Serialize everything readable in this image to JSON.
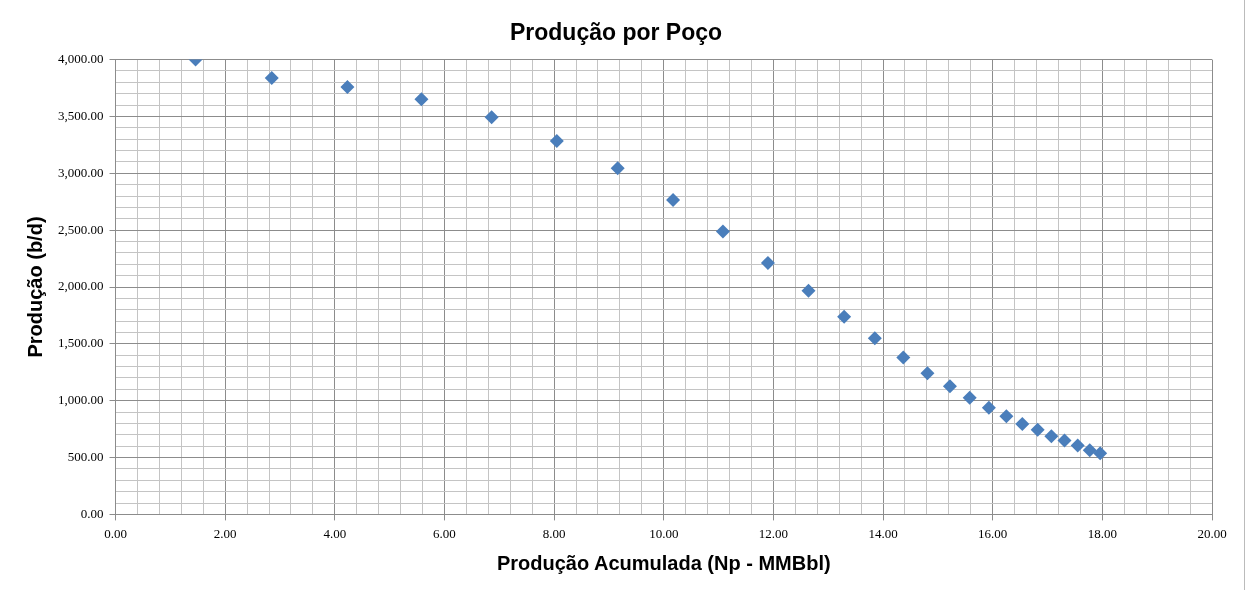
{
  "chart_data": {
    "type": "scatter",
    "title": "Produção por Poço",
    "xlabel": "Produção Acumulada (Np - MMBbl)",
    "ylabel": "Produção (b/d)",
    "x": [
      1.46,
      2.85,
      4.23,
      5.58,
      6.86,
      8.05,
      9.16,
      10.17,
      11.08,
      11.9,
      12.64,
      13.29,
      13.85,
      14.37,
      14.81,
      15.22,
      15.58,
      15.93,
      16.25,
      16.54,
      16.82,
      17.07,
      17.31,
      17.55,
      17.77,
      17.96
    ],
    "series": [
      {
        "color": "#4a7ebb",
        "values": [
          4000,
          3838,
          3760,
          3652,
          3493,
          3284,
          3044,
          2766,
          2489,
          2212,
          1968,
          1739,
          1549,
          1380,
          1241,
          1126,
          1025,
          937,
          863,
          795,
          744,
          687,
          650,
          605,
          564,
          538
        ]
      }
    ],
    "marker": "diamond",
    "grid": true,
    "legend": false,
    "xlim": [
      0,
      20
    ],
    "ylim": [
      0,
      4000
    ],
    "xticks": [
      {
        "value": 0,
        "label": "0.00"
      },
      {
        "value": 0.4,
        "label": null
      },
      {
        "value": 0.8,
        "label": null
      },
      {
        "value": 1.2,
        "label": null
      },
      {
        "value": 1.6,
        "label": null
      },
      {
        "value": 2,
        "label": "2.00"
      },
      {
        "value": 2.4,
        "label": null
      },
      {
        "value": 2.8,
        "label": null
      },
      {
        "value": 3.2,
        "label": null
      },
      {
        "value": 3.6,
        "label": null
      },
      {
        "value": 4,
        "label": "4.00"
      },
      {
        "value": 4.4,
        "label": null
      },
      {
        "value": 4.8,
        "label": null
      },
      {
        "value": 5.2,
        "label": null
      },
      {
        "value": 5.6,
        "label": null
      },
      {
        "value": 6,
        "label": "6.00"
      },
      {
        "value": 6.4,
        "label": null
      },
      {
        "value": 6.8,
        "label": null
      },
      {
        "value": 7.2,
        "label": null
      },
      {
        "value": 7.6,
        "label": null
      },
      {
        "value": 8,
        "label": "8.00"
      },
      {
        "value": 8.4,
        "label": null
      },
      {
        "value": 8.8,
        "label": null
      },
      {
        "value": 9.2,
        "label": null
      },
      {
        "value": 9.6,
        "label": null
      },
      {
        "value": 10,
        "label": "10.00"
      },
      {
        "value": 10.4,
        "label": null
      },
      {
        "value": 10.8,
        "label": null
      },
      {
        "value": 11.2,
        "label": null
      },
      {
        "value": 11.6,
        "label": null
      },
      {
        "value": 12,
        "label": "12.00"
      },
      {
        "value": 12.4,
        "label": null
      },
      {
        "value": 12.8,
        "label": null
      },
      {
        "value": 13.2,
        "label": null
      },
      {
        "value": 13.6,
        "label": null
      },
      {
        "value": 14,
        "label": "14.00"
      },
      {
        "value": 14.4,
        "label": null
      },
      {
        "value": 14.8,
        "label": null
      },
      {
        "value": 15.2,
        "label": null
      },
      {
        "value": 15.6,
        "label": null
      },
      {
        "value": 16,
        "label": "16.00"
      },
      {
        "value": 16.4,
        "label": null
      },
      {
        "value": 16.8,
        "label": null
      },
      {
        "value": 17.2,
        "label": null
      },
      {
        "value": 17.6,
        "label": null
      },
      {
        "value": 18,
        "label": "18.00"
      },
      {
        "value": 18.4,
        "label": null
      },
      {
        "value": 18.8,
        "label": null
      },
      {
        "value": 19.2,
        "label": null
      },
      {
        "value": 19.6,
        "label": null
      },
      {
        "value": 20,
        "label": "20.00"
      }
    ],
    "yticks": [
      {
        "value": 0,
        "label": "0.00"
      },
      {
        "value": 100,
        "label": null
      },
      {
        "value": 200,
        "label": null
      },
      {
        "value": 300,
        "label": null
      },
      {
        "value": 400,
        "label": null
      },
      {
        "value": 500,
        "label": "500.00"
      },
      {
        "value": 600,
        "label": null
      },
      {
        "value": 700,
        "label": null
      },
      {
        "value": 800,
        "label": null
      },
      {
        "value": 900,
        "label": null
      },
      {
        "value": 1000,
        "label": "1,000.00"
      },
      {
        "value": 1100,
        "label": null
      },
      {
        "value": 1200,
        "label": null
      },
      {
        "value": 1300,
        "label": null
      },
      {
        "value": 1400,
        "label": null
      },
      {
        "value": 1500,
        "label": "1,500.00"
      },
      {
        "value": 1600,
        "label": null
      },
      {
        "value": 1700,
        "label": null
      },
      {
        "value": 1800,
        "label": null
      },
      {
        "value": 1900,
        "label": null
      },
      {
        "value": 2000,
        "label": "2,000.00"
      },
      {
        "value": 2100,
        "label": null
      },
      {
        "value": 2200,
        "label": null
      },
      {
        "value": 2300,
        "label": null
      },
      {
        "value": 2400,
        "label": null
      },
      {
        "value": 2500,
        "label": "2,500.00"
      },
      {
        "value": 2600,
        "label": null
      },
      {
        "value": 2700,
        "label": null
      },
      {
        "value": 2800,
        "label": null
      },
      {
        "value": 2900,
        "label": null
      },
      {
        "value": 3000,
        "label": "3,000.00"
      },
      {
        "value": 3100,
        "label": null
      },
      {
        "value": 3200,
        "label": null
      },
      {
        "value": 3300,
        "label": null
      },
      {
        "value": 3400,
        "label": null
      },
      {
        "value": 3500,
        "label": "3,500.00"
      },
      {
        "value": 3600,
        "label": null
      },
      {
        "value": 3700,
        "label": null
      },
      {
        "value": 3800,
        "label": null
      },
      {
        "value": 3900,
        "label": null
      },
      {
        "value": 4000,
        "label": "4,000.00"
      }
    ]
  }
}
